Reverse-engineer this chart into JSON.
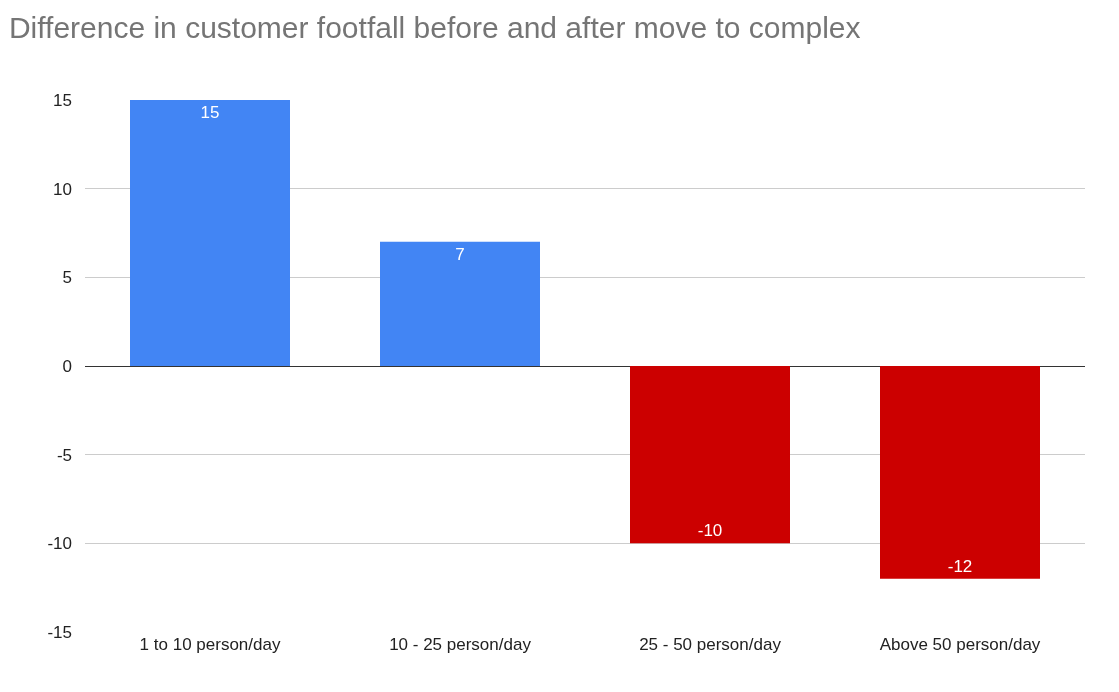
{
  "chart_data": {
    "type": "bar",
    "title": "Difference in customer footfall before and after move to complex",
    "categories": [
      "1 to 10 person/day",
      "10 - 25 person/day",
      "25 - 50 person/day",
      "Above 50 person/day"
    ],
    "values": [
      15,
      7,
      -10,
      -12
    ],
    "colors": [
      "#4285f4",
      "#4285f4",
      "#cc0000",
      "#cc0000"
    ],
    "ylim": [
      -15,
      15
    ],
    "yticks": [
      -15,
      -10,
      -5,
      0,
      5,
      10,
      15
    ],
    "grid": "y",
    "data_labels": true
  }
}
